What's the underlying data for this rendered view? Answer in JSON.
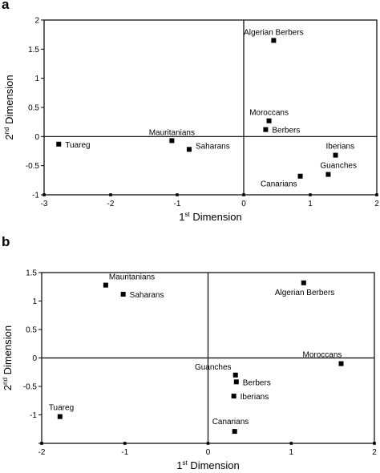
{
  "chart_data": [
    {
      "panel": "a",
      "type": "scatter",
      "xlabel": {
        "base": "1",
        "sup": "st",
        "rest": " Dimension"
      },
      "ylabel": {
        "base": "2",
        "sup": "nd",
        "rest": " Dimension"
      },
      "xlim": [
        -3,
        2
      ],
      "ylim": [
        -1,
        2
      ],
      "xticks": [
        -3,
        -2,
        -1,
        0,
        1,
        2
      ],
      "xtick_labels": [
        "-3",
        "-2",
        "-1",
        "0",
        "1",
        "2"
      ],
      "yticks": [
        -1,
        -0.5,
        0,
        0.5,
        1,
        1.5,
        2
      ],
      "ytick_labels": [
        "-1",
        "-0.5",
        "0",
        "0.5",
        "1",
        "1.5",
        "2"
      ],
      "reference_lines": {
        "x": 0,
        "y": 0
      },
      "grid": false,
      "points": [
        {
          "label": "Algerian Berbers",
          "x": 0.45,
          "y": 1.65,
          "anchor": "above"
        },
        {
          "label": "Moroccans",
          "x": 0.38,
          "y": 0.27,
          "anchor": "above"
        },
        {
          "label": "Berbers",
          "x": 0.33,
          "y": 0.12,
          "anchor": "right"
        },
        {
          "label": "Mauritanians",
          "x": -1.08,
          "y": -0.07,
          "anchor": "above"
        },
        {
          "label": "Saharans",
          "x": -0.82,
          "y": -0.22,
          "anchor": "right-up"
        },
        {
          "label": "Tuareg",
          "x": -2.78,
          "y": -0.13,
          "anchor": "right"
        },
        {
          "label": "Iberians",
          "x": 1.38,
          "y": -0.32,
          "anchor": "above"
        },
        {
          "label": "Guanches",
          "x": 1.27,
          "y": -0.65,
          "anchor": "above-right"
        },
        {
          "label": "Canarians",
          "x": 0.85,
          "y": -0.68,
          "anchor": "below"
        }
      ]
    },
    {
      "panel": "b",
      "type": "scatter",
      "xlabel": {
        "base": "1",
        "sup": "st",
        "rest": " Dimension"
      },
      "ylabel": {
        "base": "2",
        "sup": "nd",
        "rest": " Dimension"
      },
      "xlim": [
        -2,
        2
      ],
      "ylim": [
        -1.5,
        1.5
      ],
      "xticks": [
        -2,
        -1,
        0,
        1,
        2
      ],
      "xtick_labels": [
        "-2",
        "-1",
        "0",
        "1",
        "2"
      ],
      "yticks": [
        -1.5,
        -1,
        -0.5,
        0,
        0.5,
        1,
        1.5
      ],
      "ytick_labels": [
        "",
        "-1",
        "-0.5",
        "0",
        "0.5",
        "1",
        "1.5"
      ],
      "reference_lines": {
        "x": 0,
        "y": 0
      },
      "grid": false,
      "points": [
        {
          "label": "Mauritanians",
          "x": -1.23,
          "y": 1.28,
          "anchor": "above-right"
        },
        {
          "label": "Saharans",
          "x": -1.02,
          "y": 1.12,
          "anchor": "right"
        },
        {
          "label": "Algerian Berbers",
          "x": 1.15,
          "y": 1.32,
          "anchor": "below"
        },
        {
          "label": "Moroccans",
          "x": 1.6,
          "y": -0.1,
          "anchor": "above"
        },
        {
          "label": "Guanches",
          "x": 0.33,
          "y": -0.3,
          "anchor": "above"
        },
        {
          "label": "Berbers",
          "x": 0.34,
          "y": -0.42,
          "anchor": "right"
        },
        {
          "label": "Iberians",
          "x": 0.31,
          "y": -0.67,
          "anchor": "right"
        },
        {
          "label": "Canarians",
          "x": 0.32,
          "y": -1.29,
          "anchor": "above"
        },
        {
          "label": "Tuareg",
          "x": -1.78,
          "y": -1.03,
          "anchor": "above"
        }
      ]
    }
  ]
}
